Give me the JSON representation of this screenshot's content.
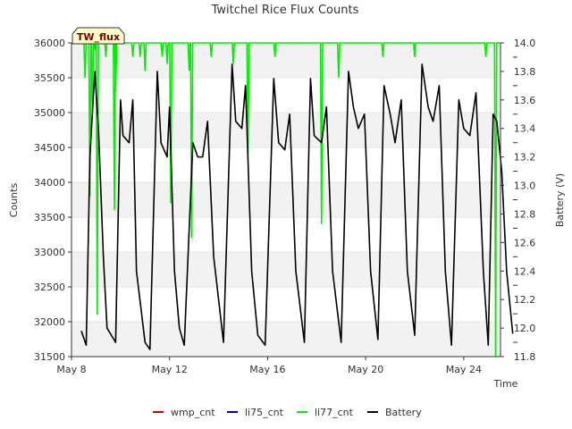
{
  "chart_data": {
    "type": "line",
    "title": "Twitchel Rice Flux Counts",
    "site_label": "TW_flux",
    "xlabel": "Time",
    "ylabel_left": "Counts",
    "ylabel_right": "Battery (V)",
    "x_range_days": [
      8,
      25.5
    ],
    "x_tick_days": [
      8,
      12,
      16,
      20,
      24
    ],
    "x_tick_labels": [
      "May 8",
      "May 12",
      "May 16",
      "May 20",
      "May 24"
    ],
    "ylim_left": [
      31500,
      36000
    ],
    "y_ticks_left": [
      31500,
      32000,
      32500,
      33000,
      33500,
      34000,
      34500,
      35000,
      35500,
      36000
    ],
    "ylim_right": [
      11.8,
      14.0
    ],
    "y_ticks_right": [
      11.8,
      12.0,
      12.2,
      12.4,
      12.6,
      12.8,
      13.0,
      13.2,
      13.4,
      13.6,
      13.8,
      14.0
    ],
    "grid": "horizontal alternating bands",
    "legend_position": "bottom",
    "series": [
      {
        "name": "wmp_cnt",
        "color": "#cc0000",
        "axis": "left",
        "x": [],
        "y": []
      },
      {
        "name": "li75_cnt",
        "color": "#0000aa",
        "axis": "left",
        "x": [],
        "y": []
      },
      {
        "name": "li77_cnt",
        "color": "#00ee00",
        "axis": "left",
        "baseline": 36000,
        "dips": [
          [
            8.55,
            35500
          ],
          [
            8.75,
            33800
          ],
          [
            8.85,
            35000
          ],
          [
            8.95,
            35900
          ],
          [
            9.05,
            32100
          ],
          [
            9.4,
            35800
          ],
          [
            9.75,
            33600
          ],
          [
            9.8,
            35300
          ],
          [
            10.5,
            35800
          ],
          [
            10.8,
            35800
          ],
          [
            11.0,
            35600
          ],
          [
            11.7,
            35800
          ],
          [
            11.9,
            35700
          ],
          [
            12.05,
            33700
          ],
          [
            12.8,
            35600
          ],
          [
            12.9,
            33200
          ],
          [
            13.7,
            35800
          ],
          [
            14.6,
            35700
          ],
          [
            15.2,
            34400
          ],
          [
            16.3,
            35800
          ],
          [
            18.2,
            33400
          ],
          [
            18.9,
            35500
          ],
          [
            20.7,
            35800
          ],
          [
            22.0,
            35800
          ],
          [
            24.9,
            35800
          ],
          [
            25.3,
            31500
          ]
        ]
      },
      {
        "name": "Battery",
        "color": "#000000",
        "axis": "right",
        "points": [
          [
            8.4,
            11.98
          ],
          [
            8.6,
            11.88
          ],
          [
            8.75,
            13.2
          ],
          [
            8.95,
            13.8
          ],
          [
            9.1,
            13.4
          ],
          [
            9.3,
            12.5
          ],
          [
            9.45,
            12.0
          ],
          [
            9.8,
            11.9
          ],
          [
            10.0,
            13.6
          ],
          [
            10.1,
            13.35
          ],
          [
            10.35,
            13.3
          ],
          [
            10.5,
            13.6
          ],
          [
            10.65,
            12.4
          ],
          [
            11.0,
            11.9
          ],
          [
            11.2,
            11.85
          ],
          [
            11.5,
            13.8
          ],
          [
            11.65,
            13.3
          ],
          [
            11.9,
            13.2
          ],
          [
            12.0,
            13.55
          ],
          [
            12.2,
            12.4
          ],
          [
            12.4,
            12.0
          ],
          [
            12.6,
            11.88
          ],
          [
            12.95,
            13.3
          ],
          [
            13.15,
            13.2
          ],
          [
            13.35,
            13.2
          ],
          [
            13.55,
            13.45
          ],
          [
            13.8,
            12.5
          ],
          [
            14.2,
            11.9
          ],
          [
            14.55,
            13.85
          ],
          [
            14.7,
            13.45
          ],
          [
            14.95,
            13.4
          ],
          [
            15.1,
            13.7
          ],
          [
            15.35,
            12.4
          ],
          [
            15.6,
            11.95
          ],
          [
            15.9,
            11.88
          ],
          [
            16.25,
            13.75
          ],
          [
            16.45,
            13.3
          ],
          [
            16.7,
            13.25
          ],
          [
            16.9,
            13.5
          ],
          [
            17.15,
            12.4
          ],
          [
            17.5,
            11.9
          ],
          [
            17.75,
            13.75
          ],
          [
            17.9,
            13.35
          ],
          [
            18.2,
            13.3
          ],
          [
            18.4,
            13.55
          ],
          [
            18.65,
            12.4
          ],
          [
            19.0,
            11.9
          ],
          [
            19.3,
            13.8
          ],
          [
            19.5,
            13.55
          ],
          [
            19.7,
            13.4
          ],
          [
            19.95,
            13.5
          ],
          [
            20.2,
            12.4
          ],
          [
            20.5,
            11.92
          ],
          [
            20.75,
            13.7
          ],
          [
            21.0,
            13.5
          ],
          [
            21.2,
            13.3
          ],
          [
            21.45,
            13.6
          ],
          [
            21.7,
            12.4
          ],
          [
            22.0,
            11.95
          ],
          [
            22.3,
            13.85
          ],
          [
            22.55,
            13.55
          ],
          [
            22.75,
            13.45
          ],
          [
            23.0,
            13.7
          ],
          [
            23.25,
            12.4
          ],
          [
            23.5,
            11.88
          ],
          [
            23.8,
            13.6
          ],
          [
            24.0,
            13.4
          ],
          [
            24.25,
            13.35
          ],
          [
            24.5,
            13.65
          ],
          [
            24.8,
            12.4
          ],
          [
            25.0,
            11.88
          ],
          [
            25.2,
            13.5
          ],
          [
            25.35,
            13.45
          ],
          [
            25.55,
            13.1
          ],
          [
            25.75,
            12.4
          ],
          [
            26.0,
            11.96
          ]
        ]
      }
    ]
  }
}
